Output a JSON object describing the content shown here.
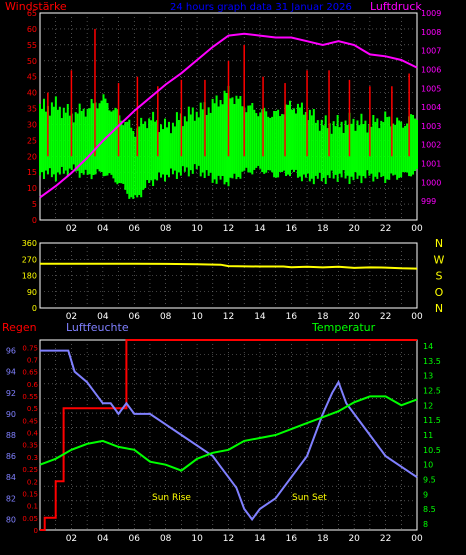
{
  "header": {
    "left_label": "Windstärke",
    "center_title": "24 hours graph data  31 Januar 2026",
    "right_label": "Luftdruck"
  },
  "colors": {
    "background": "#000000",
    "plot_bg": "#000000",
    "grid": "#808080",
    "wind_speed": "#00ff00",
    "gust": "#ff0000",
    "pressure": "#ff00ff",
    "direction": "#ffff00",
    "humidity": "#8080ff",
    "temperature": "#00ff00",
    "rain": "#ff0000",
    "title": "#0000ff",
    "axis_frame": "#ffffff",
    "sun_text": "#ffff00"
  },
  "chart_data": [
    {
      "type": "line",
      "name": "wind_pressure",
      "x_ticks": [
        "02",
        "04",
        "06",
        "08",
        "10",
        "12",
        "14",
        "16",
        "18",
        "20",
        "22",
        "00"
      ],
      "left_axis": {
        "label": "Windstärke",
        "ylim": [
          0,
          65
        ],
        "ticks": [
          "0",
          "5",
          "10",
          "15",
          "20",
          "25",
          "30",
          "35",
          "40",
          "45",
          "50",
          "55",
          "60",
          "65"
        ]
      },
      "right_axis": {
        "label": "Luftdruck",
        "ylim": [
          998,
          1009
        ],
        "ticks": [
          "999",
          "1000",
          "1001",
          "1002",
          "1003",
          "1004",
          "1005",
          "1006",
          "1007",
          "1008",
          "1009"
        ]
      },
      "series": [
        {
          "name": "Luftdruck",
          "x": [
            0,
            1,
            2,
            3,
            4,
            5,
            6,
            7,
            8,
            9,
            10,
            11,
            12,
            13,
            14,
            15,
            16,
            17,
            18,
            19,
            20,
            21,
            22,
            23,
            24
          ],
          "values": [
            999.2,
            999.8,
            1000.5,
            1001.3,
            1002.2,
            1003.0,
            1003.8,
            1004.5,
            1005.2,
            1005.8,
            1006.5,
            1007.2,
            1007.8,
            1007.9,
            1007.8,
            1007.7,
            1007.7,
            1007.5,
            1007.3,
            1007.5,
            1007.3,
            1006.8,
            1006.7,
            1006.5,
            1006.1
          ]
        }
      ],
      "wind_band": {
        "x": [
          0,
          1,
          2,
          3,
          4,
          5,
          6,
          7,
          8,
          9,
          10,
          11,
          12,
          13,
          14,
          15,
          16,
          17,
          18,
          19,
          20,
          21,
          22,
          23,
          24
        ],
        "high": [
          35,
          36,
          33,
          35,
          38,
          33,
          28,
          32,
          29,
          32,
          34,
          36,
          40,
          36,
          34,
          33,
          36,
          34,
          30,
          30,
          31,
          30,
          32,
          30,
          33
        ],
        "low": [
          15,
          14,
          16,
          14,
          15,
          12,
          6,
          12,
          14,
          15,
          16,
          13,
          12,
          15,
          16,
          14,
          15,
          13,
          13,
          14,
          13,
          14,
          13,
          14,
          15
        ]
      },
      "gust_peaks": {
        "x": [
          0.5,
          2,
          3.5,
          5,
          6.2,
          7.5,
          9,
          10.5,
          12,
          13,
          14.2,
          15.6,
          17,
          18.4,
          19.7,
          21,
          22.4,
          23.5
        ],
        "values": [
          40,
          47,
          60,
          43,
          45,
          42,
          44,
          44,
          50,
          55,
          45,
          43,
          47,
          47,
          44,
          42,
          42,
          46
        ]
      }
    },
    {
      "type": "line",
      "name": "wind_direction",
      "x_ticks": [
        "02",
        "04",
        "06",
        "08",
        "10",
        "12",
        "14",
        "16",
        "18",
        "20",
        "22",
        "00"
      ],
      "left_axis": {
        "ylim": [
          0,
          360
        ],
        "ticks": [
          "0",
          "90",
          "180",
          "270",
          "360"
        ]
      },
      "right_axis": {
        "labels": [
          "N",
          "W",
          "S",
          "O",
          "N"
        ]
      },
      "series": [
        {
          "name": "Windrichtung",
          "x": [
            0,
            2,
            4,
            6,
            8,
            10,
            11.5,
            12,
            14,
            15.5,
            16,
            17,
            18,
            19,
            20,
            21,
            22,
            23,
            24
          ],
          "values": [
            245,
            245,
            245,
            245,
            244,
            242,
            240,
            232,
            230,
            230,
            226,
            228,
            225,
            228,
            222,
            225,
            224,
            220,
            218
          ]
        }
      ]
    },
    {
      "type": "line",
      "name": "climate",
      "x_ticks": [
        "02",
        "04",
        "06",
        "08",
        "10",
        "12",
        "14",
        "16",
        "18",
        "20",
        "22",
        "00"
      ],
      "labels": {
        "rain": "Regen",
        "humidity": "Luftfeuchte",
        "temperature": "Temperatur"
      },
      "humidity_axis": {
        "ylim": [
          79,
          97
        ],
        "ticks": [
          "80",
          "82",
          "84",
          "86",
          "88",
          "90",
          "92",
          "94",
          "96"
        ]
      },
      "rain_axis": {
        "ylim": [
          0,
          0.78
        ],
        "ticks": [
          "0",
          "0.05",
          "0.1",
          "0.15",
          "0.2",
          "0.25",
          "0.3",
          "0.35",
          "0.4",
          "0.45",
          "0.5",
          "0.55",
          "0.6",
          "0.65",
          "0.7",
          "0.75"
        ]
      },
      "temp_axis": {
        "ylim": [
          7.8,
          14.2
        ],
        "ticks": [
          "8",
          "8.5",
          "9",
          "9.5",
          "10",
          "10.5",
          "11",
          "11.5",
          "12",
          "12.5",
          "13",
          "13.5",
          "14"
        ]
      },
      "series": [
        {
          "name": "Regen",
          "x": [
            0,
            0.3,
            0.3,
            1,
            1,
            1.5,
            1.5,
            5.5,
            5.5,
            24
          ],
          "values": [
            0,
            0,
            0.05,
            0.05,
            0.2,
            0.2,
            0.5,
            0.5,
            0.78,
            0.78
          ]
        },
        {
          "name": "Luftfeuchte",
          "x": [
            0,
            1.8,
            2.2,
            3,
            3.5,
            4,
            4.5,
            5,
            5.5,
            6,
            7,
            8,
            9,
            10,
            11,
            11.5,
            12,
            12.5,
            13,
            13.5,
            14,
            15,
            16,
            17,
            18,
            18.6,
            19,
            19.5,
            20,
            21,
            22,
            23,
            24
          ],
          "values": [
            96,
            96,
            94,
            93,
            92,
            91,
            91,
            90,
            91,
            90,
            90,
            89,
            88,
            87,
            86,
            85,
            84,
            83,
            81,
            80,
            81,
            82,
            84,
            86,
            90,
            92,
            93,
            91,
            90,
            88,
            86,
            85,
            84
          ]
        },
        {
          "name": "Temperatur",
          "x": [
            0,
            1,
            2,
            3,
            4,
            5,
            6,
            7,
            8,
            9,
            10,
            11,
            12,
            13,
            14,
            15,
            16,
            17,
            18,
            19,
            20,
            21,
            22,
            23,
            24
          ],
          "values": [
            10.0,
            10.2,
            10.5,
            10.7,
            10.8,
            10.6,
            10.5,
            10.1,
            10.0,
            9.8,
            10.2,
            10.4,
            10.5,
            10.8,
            10.9,
            11.0,
            11.2,
            11.4,
            11.6,
            11.8,
            12.1,
            12.3,
            12.3,
            12.0,
            12.2
          ]
        }
      ],
      "annotations": {
        "sun_rise": "Sun Rise",
        "sun_set": "Sun Set"
      }
    }
  ]
}
